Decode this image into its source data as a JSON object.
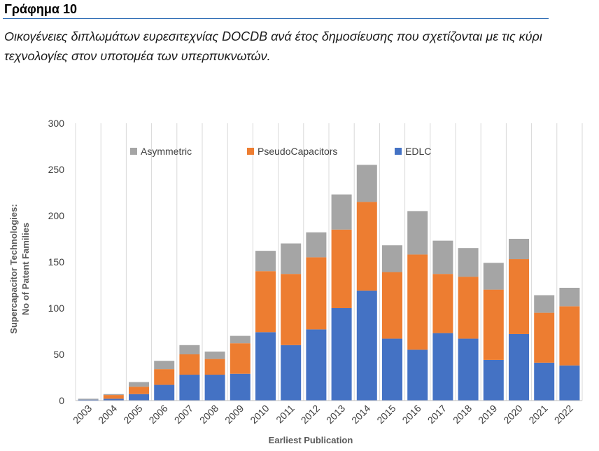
{
  "header": {
    "figure_label": "Γράφημα 10",
    "caption_line1": "Οικογένειες διπλωμάτων ευρεσιτεχνίας DOCDB ανά έτος δημοσίευσης που σχετίζονται με τις κύρι",
    "caption_line2": "τεχνολογίες στον υποτομέα των υπερπυκνωτών."
  },
  "chart_data": {
    "type": "bar",
    "stacked": true,
    "xlabel": "Earliest Publication",
    "ylabel_line1": "Supercapacitor Technologies:",
    "ylabel_line2": "No of Patent Families",
    "ylim": [
      0,
      300
    ],
    "yticks": [
      0,
      50,
      100,
      150,
      200,
      250,
      300
    ],
    "grid": "vertical",
    "legend_placement": "top",
    "categories": [
      "2003",
      "2004",
      "2005",
      "2006",
      "2007",
      "2008",
      "2009",
      "2010",
      "2011",
      "2012",
      "2013",
      "2014",
      "2015",
      "2016",
      "2017",
      "2018",
      "2019",
      "2020",
      "2021",
      "2022"
    ],
    "series": [
      {
        "name": "EDLC",
        "color": "#4472c4",
        "values": [
          1,
          2,
          7,
          17,
          28,
          28,
          29,
          74,
          60,
          77,
          100,
          119,
          67,
          55,
          73,
          67,
          44,
          72,
          41,
          38
        ]
      },
      {
        "name": "PseudoCapacitors",
        "color": "#ed7d31",
        "values": [
          0,
          4,
          8,
          17,
          22,
          17,
          33,
          66,
          77,
          78,
          85,
          96,
          72,
          103,
          64,
          67,
          76,
          81,
          54,
          64
        ]
      },
      {
        "name": "Asymmetric",
        "color": "#a5a5a5",
        "values": [
          1,
          1,
          5,
          9,
          10,
          8,
          8,
          22,
          33,
          27,
          38,
          40,
          29,
          47,
          36,
          31,
          29,
          22,
          19,
          20
        ]
      }
    ],
    "legend_order": [
      "Asymmetric",
      "PseudoCapacitors",
      "EDLC"
    ]
  }
}
